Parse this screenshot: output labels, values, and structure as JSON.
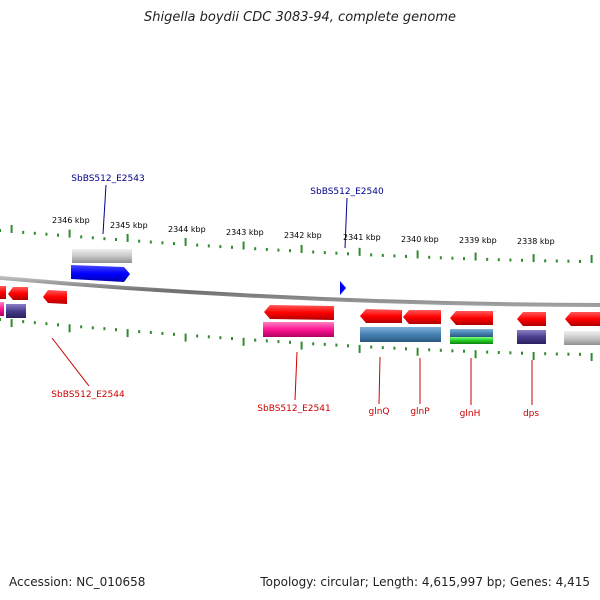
{
  "title": "Shigella boydii CDC 3083-94, complete genome",
  "footer": {
    "accession": "Accession: NC_010658",
    "topology": "Topology: circular; Length: 4,615,997 bp; Genes: 4,415"
  },
  "colors": {
    "track_grey": "#8a8a8a",
    "tick_green": "#2e8b2e",
    "label_blue": "#00008b",
    "label_red": "#cc0000"
  },
  "ruler_labels": [
    "2346 kbp",
    "2345 kbp",
    "2344 kbp",
    "2343 kbp",
    "2342 kbp",
    "2341 kbp",
    "2340 kbp",
    "2339 kbp",
    "2338 kbp"
  ],
  "gene_labels": {
    "top": [
      "SbBS512_E2543",
      "SbBS512_E2540"
    ],
    "bottom": [
      "SbBS512_E2544",
      "SbBS512_E2541",
      "glnQ",
      "glnP",
      "glnH",
      "dps"
    ]
  }
}
